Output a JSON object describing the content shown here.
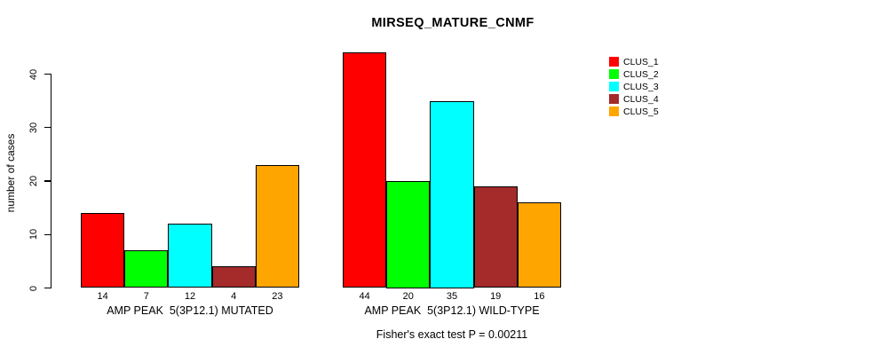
{
  "chart_data": {
    "type": "bar",
    "title": "MIRSEQ_MATURE_CNMF",
    "ylabel": "number of cases",
    "xlabel": "",
    "ylim": [
      0,
      44
    ],
    "yticks": [
      0,
      10,
      20,
      30,
      40
    ],
    "grid": false,
    "legend_position": "top-right-outside",
    "categories": [
      "AMP PEAK  5(3P12.1) MUTATED",
      "AMP PEAK  5(3P12.1) WILD-TYPE"
    ],
    "series": [
      {
        "name": "CLUS_1",
        "color": "#ff0000",
        "values": [
          14,
          44
        ]
      },
      {
        "name": "CLUS_2",
        "color": "#00ff00",
        "values": [
          7,
          20
        ]
      },
      {
        "name": "CLUS_3",
        "color": "#00ffff",
        "values": [
          12,
          35
        ]
      },
      {
        "name": "CLUS_4",
        "color": "#a52a2a",
        "values": [
          4,
          19
        ]
      },
      {
        "name": "CLUS_5",
        "color": "#ffa500",
        "values": [
          23,
          16
        ]
      }
    ],
    "bar_value_labels": [
      [
        14,
        7,
        12,
        4,
        23
      ],
      [
        44,
        20,
        35,
        19,
        16
      ]
    ],
    "annotation": "Fisher's exact test P = 0.00211"
  }
}
